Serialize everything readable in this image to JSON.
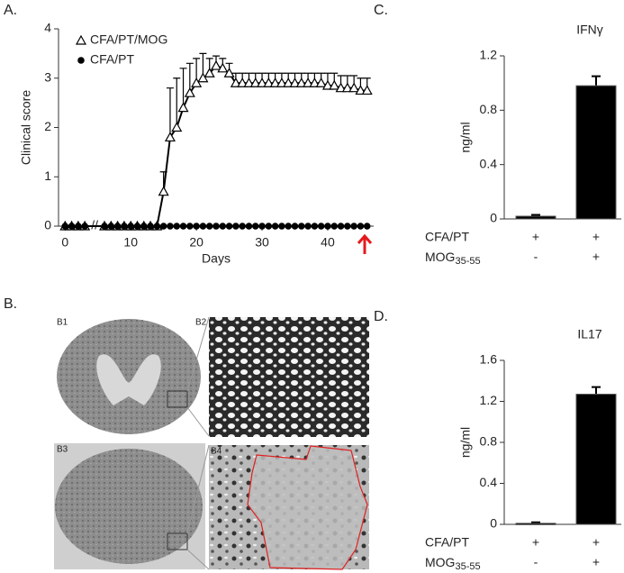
{
  "chart_data": [
    {
      "type": "line",
      "panel_label": "A.",
      "xlabel": "Days",
      "ylabel": "Clinical score",
      "x": [
        0,
        1,
        2,
        3,
        6,
        7,
        8,
        9,
        10,
        11,
        12,
        13,
        14,
        15,
        16,
        17,
        18,
        19,
        20,
        21,
        22,
        23,
        24,
        25,
        26,
        27,
        28,
        29,
        30,
        31,
        32,
        33,
        34,
        35,
        36,
        37,
        38,
        39,
        40,
        41,
        42,
        43,
        44,
        45,
        46
      ],
      "xlim": [
        -1,
        47
      ],
      "xticks": [
        0,
        10,
        20,
        30,
        40
      ],
      "ylim": [
        0,
        4
      ],
      "yticks": [
        0,
        1,
        2,
        3,
        4
      ],
      "axis_break": "//",
      "legend": "upper left",
      "series": [
        {
          "name": "CFA/PT/MOG",
          "marker": "triangle-open",
          "color": "#000000",
          "values": [
            0,
            0,
            0,
            0,
            0,
            0,
            0,
            0,
            0,
            0,
            0,
            0,
            0,
            0.7,
            1.8,
            2.0,
            2.4,
            2.7,
            2.9,
            3.0,
            3.1,
            3.25,
            3.2,
            3.1,
            2.9,
            2.9,
            2.9,
            2.9,
            2.9,
            2.9,
            2.9,
            2.9,
            2.9,
            2.9,
            2.9,
            2.9,
            2.9,
            2.9,
            2.85,
            2.85,
            2.8,
            2.8,
            2.8,
            2.75,
            2.75
          ],
          "errors": [
            0,
            0,
            0,
            0,
            0,
            0,
            0,
            0,
            0,
            0,
            0,
            0,
            0,
            0.4,
            1.0,
            1.0,
            0.8,
            0.6,
            0.5,
            0.5,
            0.3,
            0.2,
            0.2,
            0.2,
            0.2,
            0.2,
            0.2,
            0.2,
            0.2,
            0.2,
            0.2,
            0.2,
            0.2,
            0.2,
            0.2,
            0.2,
            0.2,
            0.2,
            0.25,
            0.25,
            0.25,
            0.25,
            0.25,
            0.25,
            0.25
          ]
        },
        {
          "name": "CFA/PT",
          "marker": "circle",
          "color": "#000000",
          "values": [
            0,
            0,
            0,
            0,
            0,
            0,
            0,
            0,
            0,
            0,
            0,
            0,
            0,
            0,
            0,
            0,
            0,
            0,
            0,
            0,
            0,
            0,
            0,
            0,
            0,
            0,
            0,
            0,
            0,
            0,
            0,
            0,
            0,
            0,
            0,
            0,
            0,
            0,
            0,
            0,
            0,
            0,
            0,
            0,
            0
          ]
        }
      ]
    },
    {
      "type": "bar",
      "panel_label": "C.",
      "title": "IFNγ",
      "ylabel": "ng/ml",
      "values": [
        0.02,
        0.98
      ],
      "errors": [
        0.01,
        0.07
      ],
      "color": "#000000",
      "ylim": [
        0,
        1.2
      ],
      "yticks": [
        0,
        0.4,
        0.8,
        1.2
      ],
      "conditions": [
        {
          "name": "CFA/PT",
          "levels": [
            "+",
            "+"
          ]
        },
        {
          "name": {
            "text": "MOG",
            "subscript": "35-55"
          },
          "levels": [
            "-",
            "+"
          ]
        }
      ]
    },
    {
      "type": "bar",
      "panel_label": "D.",
      "title": "IL17",
      "ylabel": "ng/ml",
      "values": [
        0.01,
        1.27
      ],
      "errors": [
        0.01,
        0.07
      ],
      "color": "#000000",
      "ylim": [
        0,
        1.6
      ],
      "yticks": [
        0,
        0.4,
        0.8,
        1.2,
        1.6
      ],
      "conditions": [
        {
          "name": "CFA/PT",
          "levels": [
            "+",
            "+"
          ]
        },
        {
          "name": {
            "text": "MOG",
            "subscript": "35-55"
          },
          "levels": [
            "-",
            "+"
          ]
        }
      ]
    }
  ],
  "panel_b": {
    "label": "B.",
    "images": [
      "B1",
      "B2",
      "B3",
      "B4"
    ]
  }
}
